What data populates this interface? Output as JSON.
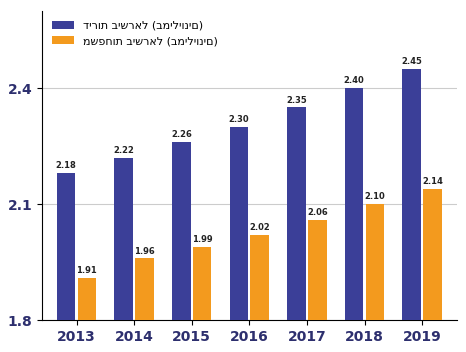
{
  "chart_data": {
    "type": "bar",
    "categories": [
      "2013",
      "2014",
      "2015",
      "2016",
      "2017",
      "2018",
      "2019"
    ],
    "series": [
      {
        "name": "דירות בישראל (במיליונים)",
        "color": "#3b3f98",
        "values": [
          2.18,
          2.22,
          2.26,
          2.3,
          2.35,
          2.4,
          2.45
        ],
        "value_labels": [
          "2.18",
          "2.22",
          "2.26",
          "2.30",
          "2.35",
          "2.40",
          "2.45"
        ]
      },
      {
        "name": "משפחות בישראל (במיליונים)",
        "color": "#f39a1e",
        "values": [
          1.91,
          1.96,
          1.99,
          2.02,
          2.06,
          2.1,
          2.14
        ],
        "value_labels": [
          "1.91",
          "1.96",
          "1.99",
          "2.02",
          "2.06",
          "2.10",
          "2.14"
        ]
      }
    ],
    "ylim": [
      1.8,
      2.6
    ],
    "yticks": [
      1.8,
      2.1,
      2.4
    ],
    "grid": true,
    "legend": "upper left",
    "data_labels": true
  }
}
